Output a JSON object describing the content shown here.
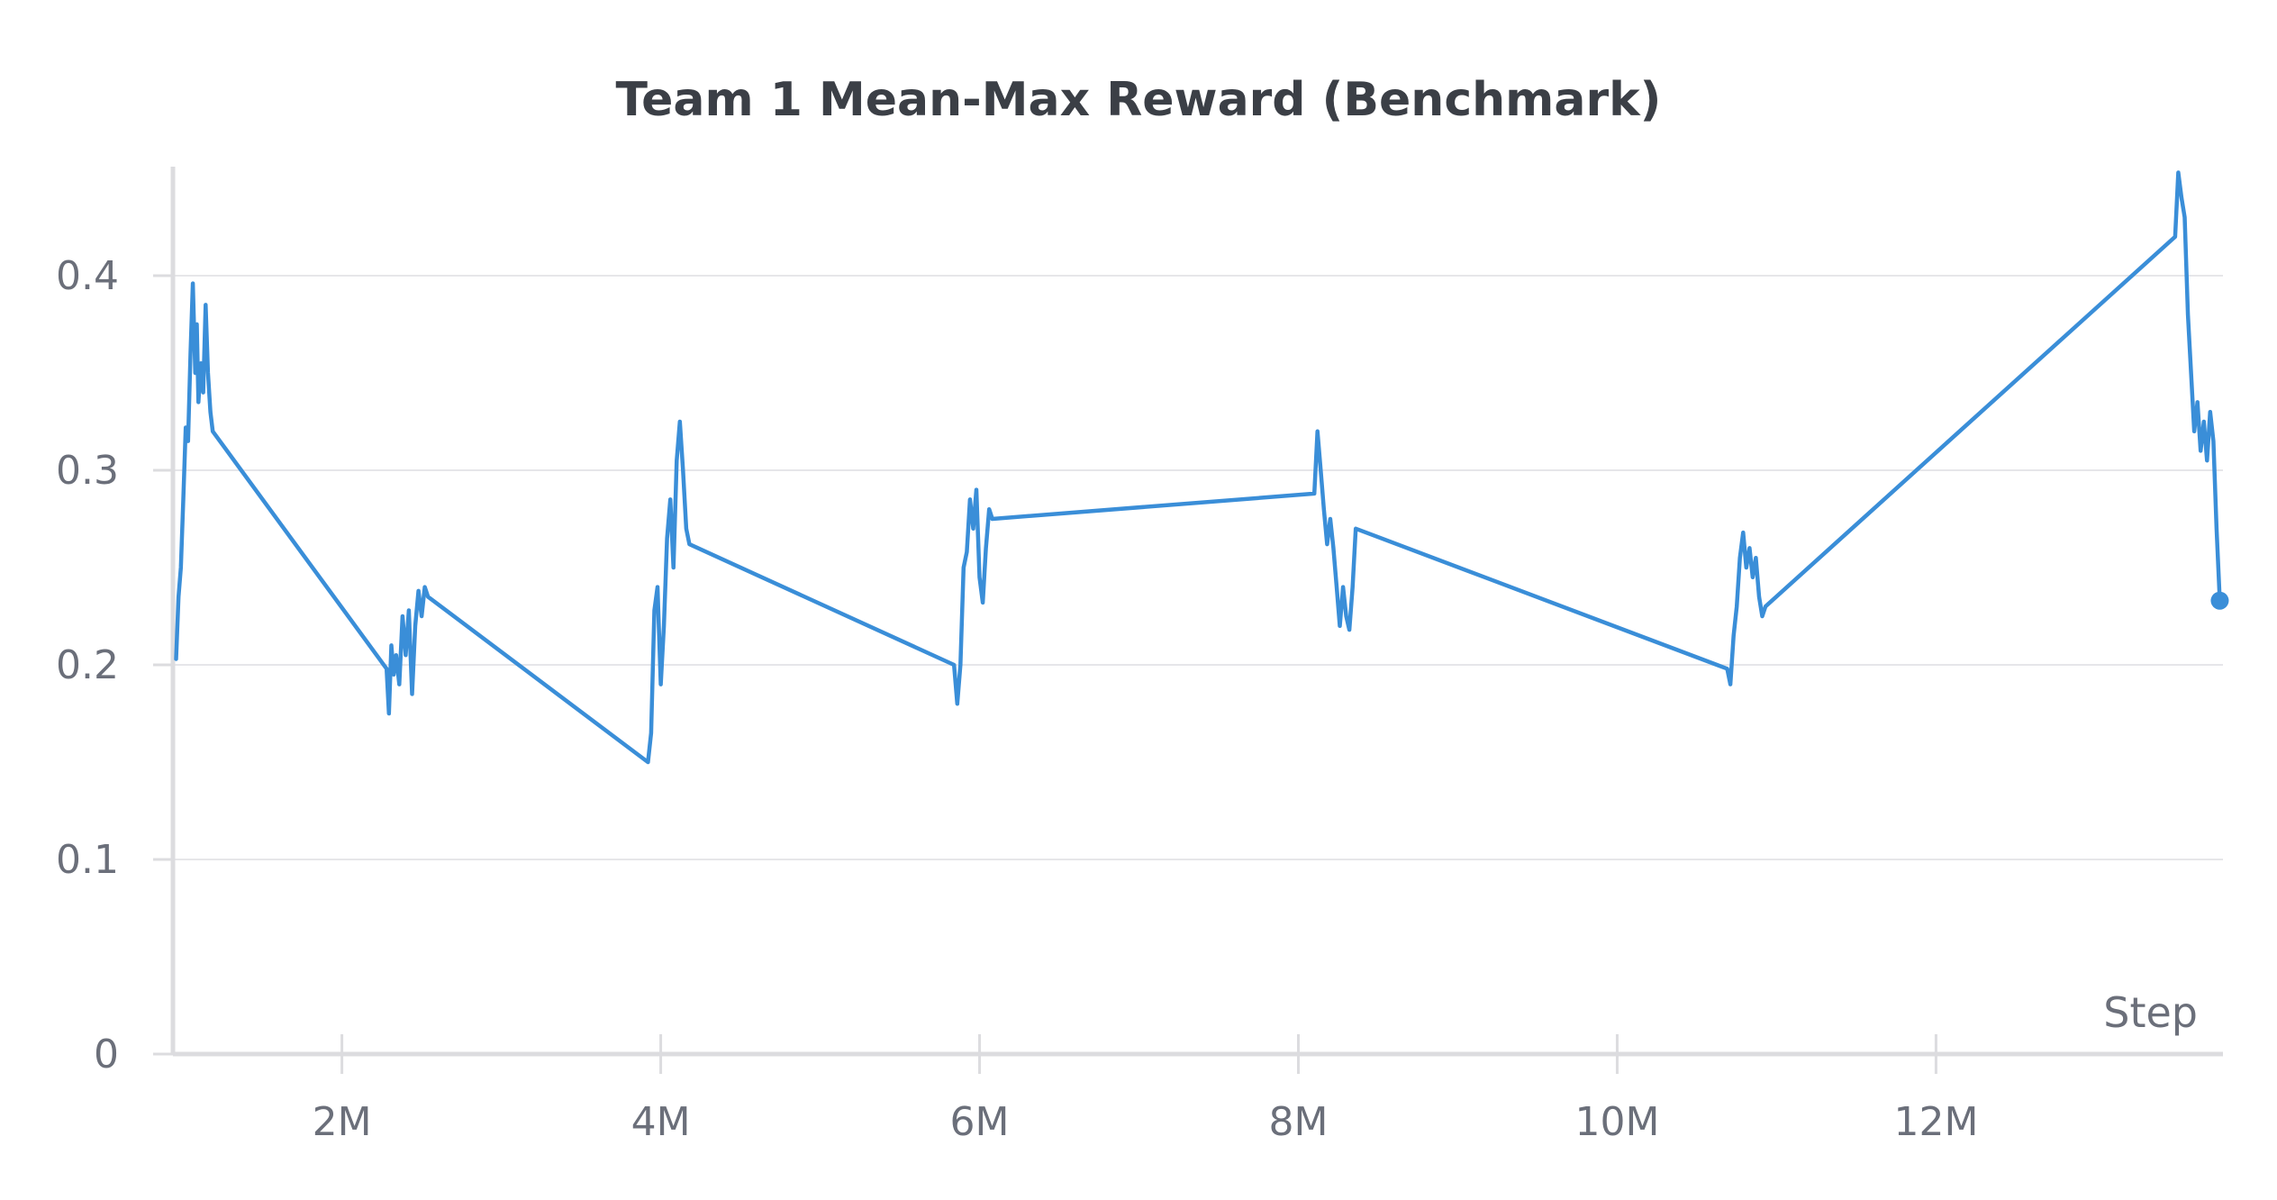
{
  "chart_data": {
    "type": "line",
    "title": "Team 1 Mean-Max Reward (Benchmark)",
    "xlabel": "Step",
    "ylabel": "",
    "xlim": [
      940000,
      13800000
    ],
    "ylim": [
      0,
      0.456
    ],
    "x_ticks": [
      {
        "value": 2000000,
        "label": "2M"
      },
      {
        "value": 4000000,
        "label": "4M"
      },
      {
        "value": 6000000,
        "label": "6M"
      },
      {
        "value": 8000000,
        "label": "8M"
      },
      {
        "value": 10000000,
        "label": "10M"
      },
      {
        "value": 12000000,
        "label": "12M"
      }
    ],
    "y_ticks": [
      {
        "value": 0,
        "label": "0"
      },
      {
        "value": 0.1,
        "label": "0.1"
      },
      {
        "value": 0.2,
        "label": "0.2"
      },
      {
        "value": 0.3,
        "label": "0.3"
      },
      {
        "value": 0.4,
        "label": "0.4"
      }
    ],
    "grid": true,
    "series": [
      {
        "color": "#3a8ed8",
        "points": [
          [
            960000,
            0.203
          ],
          [
            975000,
            0.235
          ],
          [
            990000,
            0.25
          ],
          [
            1005000,
            0.285
          ],
          [
            1020000,
            0.322
          ],
          [
            1035000,
            0.315
          ],
          [
            1050000,
            0.36
          ],
          [
            1065000,
            0.396
          ],
          [
            1080000,
            0.35
          ],
          [
            1090000,
            0.375
          ],
          [
            1100000,
            0.335
          ],
          [
            1115000,
            0.355
          ],
          [
            1130000,
            0.34
          ],
          [
            1145000,
            0.385
          ],
          [
            1160000,
            0.35
          ],
          [
            1175000,
            0.33
          ],
          [
            1190000,
            0.32
          ],
          [
            2280000,
            0.198
          ],
          [
            2295000,
            0.175
          ],
          [
            2310000,
            0.21
          ],
          [
            2325000,
            0.195
          ],
          [
            2340000,
            0.205
          ],
          [
            2360000,
            0.19
          ],
          [
            2380000,
            0.225
          ],
          [
            2400000,
            0.205
          ],
          [
            2420000,
            0.228
          ],
          [
            2440000,
            0.185
          ],
          [
            2460000,
            0.22
          ],
          [
            2480000,
            0.238
          ],
          [
            2500000,
            0.225
          ],
          [
            2520000,
            0.24
          ],
          [
            2540000,
            0.235
          ],
          [
            3920000,
            0.15
          ],
          [
            3940000,
            0.165
          ],
          [
            3960000,
            0.228
          ],
          [
            3980000,
            0.24
          ],
          [
            4000000,
            0.19
          ],
          [
            4020000,
            0.22
          ],
          [
            4040000,
            0.265
          ],
          [
            4060000,
            0.285
          ],
          [
            4080000,
            0.25
          ],
          [
            4100000,
            0.305
          ],
          [
            4120000,
            0.325
          ],
          [
            4140000,
            0.3
          ],
          [
            4160000,
            0.27
          ],
          [
            4180000,
            0.262
          ],
          [
            5840000,
            0.2
          ],
          [
            5860000,
            0.18
          ],
          [
            5880000,
            0.2
          ],
          [
            5900000,
            0.25
          ],
          [
            5920000,
            0.258
          ],
          [
            5940000,
            0.285
          ],
          [
            5960000,
            0.27
          ],
          [
            5980000,
            0.29
          ],
          [
            6000000,
            0.245
          ],
          [
            6020000,
            0.232
          ],
          [
            6040000,
            0.26
          ],
          [
            6060000,
            0.28
          ],
          [
            6080000,
            0.275
          ],
          [
            8100000,
            0.288
          ],
          [
            8120000,
            0.32
          ],
          [
            8140000,
            0.3
          ],
          [
            8160000,
            0.28
          ],
          [
            8180000,
            0.262
          ],
          [
            8200000,
            0.275
          ],
          [
            8220000,
            0.26
          ],
          [
            8240000,
            0.24
          ],
          [
            8260000,
            0.22
          ],
          [
            8280000,
            0.24
          ],
          [
            8300000,
            0.225
          ],
          [
            8320000,
            0.218
          ],
          [
            8340000,
            0.24
          ],
          [
            8360000,
            0.27
          ],
          [
            10690000,
            0.198
          ],
          [
            10710000,
            0.19
          ],
          [
            10730000,
            0.215
          ],
          [
            10750000,
            0.23
          ],
          [
            10770000,
            0.255
          ],
          [
            10790000,
            0.268
          ],
          [
            10810000,
            0.25
          ],
          [
            10830000,
            0.26
          ],
          [
            10850000,
            0.245
          ],
          [
            10870000,
            0.255
          ],
          [
            10890000,
            0.235
          ],
          [
            10910000,
            0.225
          ],
          [
            10930000,
            0.23
          ],
          [
            13500000,
            0.42
          ],
          [
            13520000,
            0.453
          ],
          [
            13540000,
            0.44
          ],
          [
            13560000,
            0.43
          ],
          [
            13580000,
            0.38
          ],
          [
            13600000,
            0.35
          ],
          [
            13620000,
            0.32
          ],
          [
            13640000,
            0.335
          ],
          [
            13660000,
            0.31
          ],
          [
            13680000,
            0.325
          ],
          [
            13700000,
            0.305
          ],
          [
            13720000,
            0.33
          ],
          [
            13740000,
            0.315
          ],
          [
            13760000,
            0.27
          ],
          [
            13780000,
            0.233
          ]
        ]
      }
    ]
  }
}
